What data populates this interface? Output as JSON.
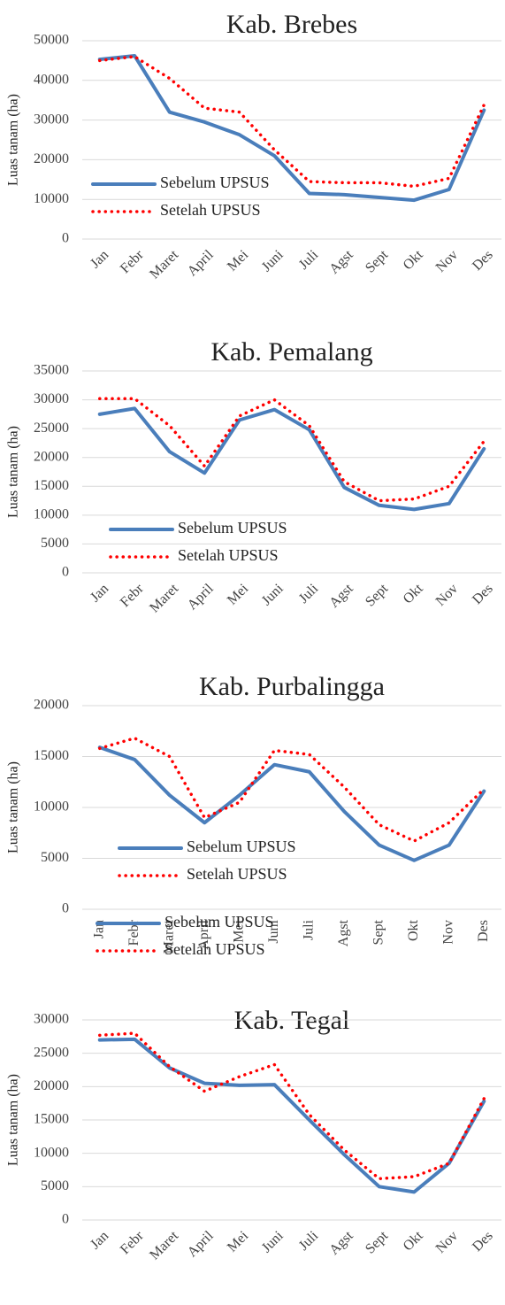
{
  "chart_data": [
    {
      "type": "line",
      "title": "Kab. Brebes",
      "ylabel": "Luas tanam (ha)",
      "categories": [
        "Jan",
        "Febr",
        "Maret",
        "April",
        "Mei",
        "Juni",
        "Juli",
        "Agst",
        "Sept",
        "Okt",
        "Nov",
        "Des"
      ],
      "ylim": [
        0,
        50000
      ],
      "yticks": [
        0,
        10000,
        20000,
        30000,
        40000,
        50000
      ],
      "grid": true,
      "series": [
        {
          "name": "Sebelum UPSUS",
          "color": "#4a7ebb",
          "style": "solid",
          "values": [
            45300,
            46200,
            32000,
            29500,
            26300,
            21000,
            11500,
            11200,
            10500,
            9800,
            12500,
            32500
          ]
        },
        {
          "name": "Setelah UPSUS",
          "color": "#ff0000",
          "style": "dotted",
          "values": [
            45000,
            46000,
            40500,
            33000,
            32000,
            22500,
            14500,
            14200,
            14200,
            13300,
            15300,
            33800
          ]
        }
      ]
    },
    {
      "type": "line",
      "title": "Kab. Pemalang",
      "ylabel": "Luas tanam (ha)",
      "categories": [
        "Jan",
        "Febr",
        "Maret",
        "April",
        "Mei",
        "Juni",
        "Juli",
        "Agst",
        "Sept",
        "Okt",
        "Nov",
        "Des"
      ],
      "ylim": [
        0,
        35000
      ],
      "yticks": [
        0,
        5000,
        10000,
        15000,
        20000,
        25000,
        30000,
        35000
      ],
      "grid": true,
      "series": [
        {
          "name": "Sebelum UPSUS",
          "color": "#4a7ebb",
          "style": "solid",
          "values": [
            27500,
            28500,
            21000,
            17300,
            26500,
            28300,
            24800,
            14800,
            11700,
            11000,
            12000,
            21500
          ]
        },
        {
          "name": "Setelah UPSUS",
          "color": "#ff0000",
          "style": "dotted",
          "values": [
            30200,
            30200,
            25500,
            18500,
            27200,
            30000,
            25500,
            15800,
            12500,
            12800,
            15000,
            22800
          ]
        }
      ]
    },
    {
      "type": "line",
      "title": "Kab. Purbalingga",
      "ylabel": "Luas tanam (ha)",
      "categories": [
        "Jan",
        "Febr",
        "Maret",
        "April",
        "Mei",
        "Juni",
        "Juli",
        "Agst",
        "Sept",
        "Okt",
        "Nov",
        "Des"
      ],
      "ylim": [
        0,
        20000
      ],
      "yticks": [
        0,
        5000,
        10000,
        15000,
        20000
      ],
      "grid": true,
      "series": [
        {
          "name": "Sebelum UPSUS",
          "color": "#4a7ebb",
          "style": "solid",
          "values": [
            15900,
            14700,
            11200,
            8500,
            11200,
            14200,
            13500,
            9600,
            6300,
            4800,
            6300,
            11600
          ]
        },
        {
          "name": "Setelah UPSUS",
          "color": "#ff0000",
          "style": "dotted",
          "values": [
            15800,
            16800,
            15000,
            9000,
            10500,
            15600,
            15200,
            12000,
            8300,
            6700,
            8500,
            11800
          ]
        }
      ]
    },
    {
      "type": "line",
      "title": "Kab. Tegal",
      "ylabel": "Luas tanam (ha)",
      "categories": [
        "Jan",
        "Febr",
        "Maret",
        "April",
        "Mei",
        "Juni",
        "Juli",
        "Agst",
        "Sept",
        "Okt",
        "Nov",
        "Des"
      ],
      "ylim": [
        0,
        30000
      ],
      "yticks": [
        0,
        5000,
        10000,
        15000,
        20000,
        25000,
        30000
      ],
      "grid": true,
      "series": [
        {
          "name": "Sebelum UPSUS",
          "color": "#4a7ebb",
          "style": "solid",
          "values": [
            27000,
            27100,
            22800,
            20500,
            20200,
            20300,
            15000,
            9800,
            5000,
            4200,
            8500,
            17800
          ]
        },
        {
          "name": "Setelah UPSUS",
          "color": "#ff0000",
          "style": "dotted",
          "values": [
            27700,
            28000,
            23000,
            19300,
            21500,
            23300,
            15800,
            10500,
            6200,
            6500,
            8500,
            18200
          ]
        }
      ]
    }
  ]
}
